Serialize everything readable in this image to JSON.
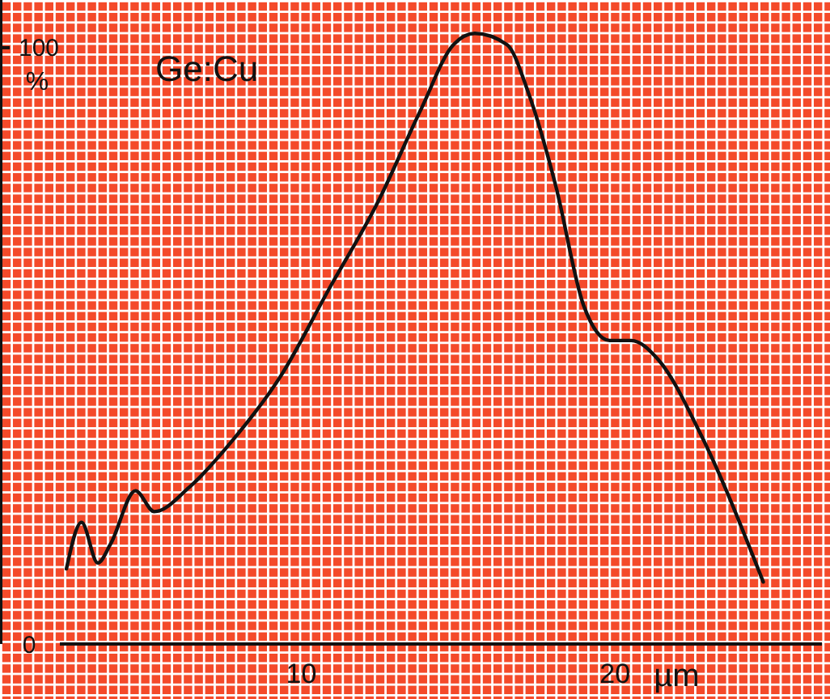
{
  "chart_data": {
    "type": "line",
    "title": "Ge:Cu",
    "xlabel": "µm",
    "ylabel": "%",
    "xlim": [
      2.3,
      26.6
    ],
    "ylim": [
      0,
      108
    ],
    "xticks": [
      10,
      20
    ],
    "yticks": [
      0,
      100
    ],
    "grid": false,
    "marker": "none",
    "line_style": "solid",
    "series": [
      {
        "color": "#111111",
        "x": [
          2.51,
          2.99,
          3.51,
          3.92,
          4.71,
          5.31,
          6.43,
          7.8,
          9.35,
          10.89,
          12.44,
          13.81,
          14.85,
          15.53,
          16.56,
          17.25,
          18.11,
          19.0,
          19.83,
          20.52,
          21.38,
          22.75,
          24.73
        ],
        "values": [
          12.6,
          20.4,
          13.6,
          16.8,
          25.7,
          22.2,
          26.3,
          34.1,
          45.0,
          59.6,
          74.1,
          89.6,
          100.5,
          102.4,
          100.5,
          92.3,
          76.9,
          56.8,
          50.9,
          50.9,
          47.7,
          35.0,
          10.4
        ]
      }
    ]
  }
}
